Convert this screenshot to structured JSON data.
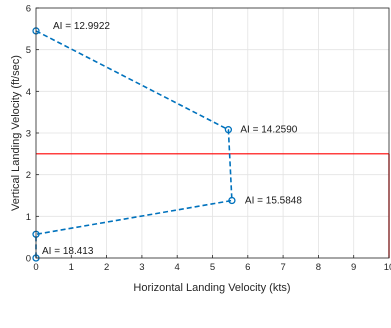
{
  "chart_data": {
    "type": "line",
    "title": "",
    "xlabel": "Horizontal Landing Velocity (kts)",
    "ylabel": "Vertical Landing Velocity (ft/sec)",
    "xlim": [
      0,
      10
    ],
    "ylim": [
      0,
      6
    ],
    "xticks": [
      "0",
      "1",
      "2",
      "3",
      "4",
      "5",
      "6",
      "7",
      "8",
      "9",
      "10"
    ],
    "yticks": [
      "0",
      "1",
      "2",
      "3",
      "4",
      "5",
      "6"
    ],
    "grid": true,
    "legend": "none",
    "series": [
      {
        "color": "#0072BD",
        "line_style": "dashed",
        "marker": "circle",
        "points": [
          {
            "x": 0.0,
            "y": 5.45
          },
          {
            "x": 5.45,
            "y": 3.08
          },
          {
            "x": 5.55,
            "y": 1.38
          },
          {
            "x": 0.0,
            "y": 0.57
          },
          {
            "x": 0.0,
            "y": 0.0
          }
        ]
      }
    ],
    "annotations": [
      {
        "text": "AI = 12.9922",
        "x": 0.0,
        "y": 5.45
      },
      {
        "text": "AI = 14.2590",
        "x": 5.45,
        "y": 3.08
      },
      {
        "text": "AI = 15.5848",
        "x": 5.55,
        "y": 1.38
      },
      {
        "text": "AI = 18.413",
        "x": 0.0,
        "y": 0.0
      }
    ],
    "threshold_box": {
      "color": "#FF0000",
      "x": [
        0,
        10
      ],
      "y": [
        0,
        2.5
      ]
    }
  }
}
